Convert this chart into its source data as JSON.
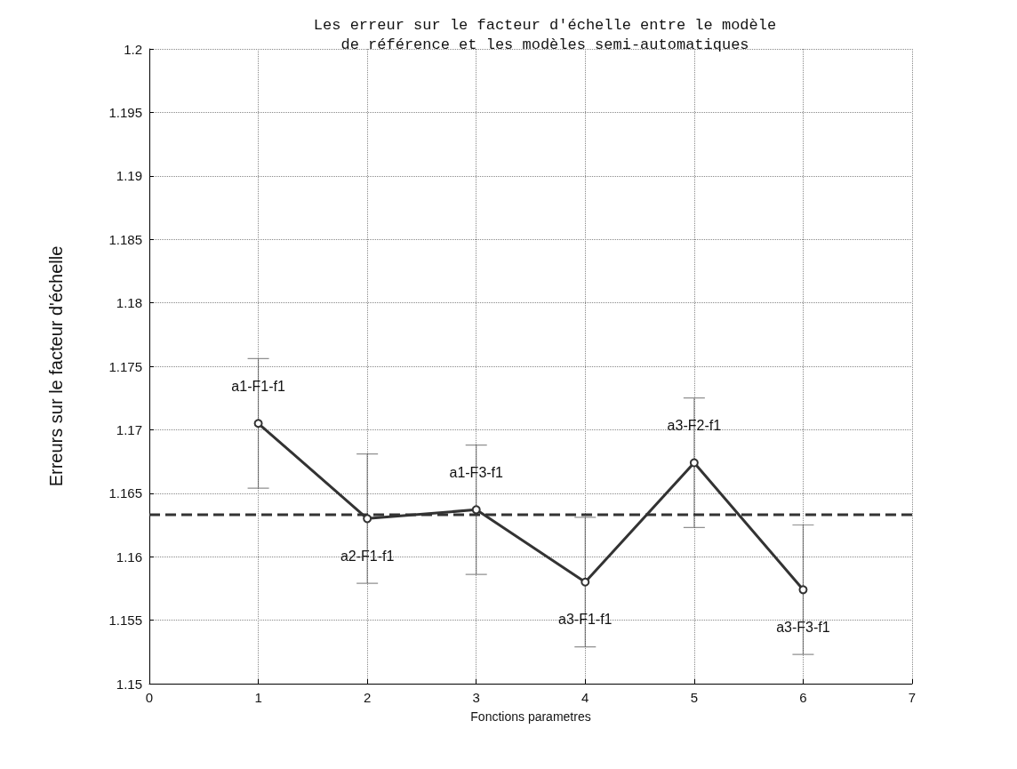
{
  "chart_data": {
    "type": "line",
    "title": "Les erreur sur le facteur d'échelle entre le modèle\nde référence et les modèles semi-automatiques",
    "xlabel": "Fonctions parametres",
    "ylabel": "Erreurs sur le facteur d'échelle",
    "x": [
      1,
      2,
      3,
      4,
      5,
      6
    ],
    "series": [
      {
        "color": "#333333",
        "values": [
          1.1705,
          1.163,
          1.1637,
          1.158,
          1.1674,
          1.1574
        ],
        "errors": [
          0.0051,
          0.0051,
          0.0051,
          0.0051,
          0.0051,
          0.0051
        ]
      }
    ],
    "ref_lines": [
      {
        "axis": "y",
        "value": 1.1633,
        "color": "#333333",
        "line_style": "dashed"
      }
    ],
    "annotations": [
      "a1-F1-f1",
      "a2-F1-f1",
      "a1-F3-f1",
      "a3-F1-f1",
      "a3-F2-f1",
      "a3-F3-f1"
    ],
    "xlim": [
      0,
      7
    ],
    "xticks": [
      0,
      1,
      2,
      3,
      4,
      5,
      6,
      7
    ],
    "ylim": [
      1.15,
      1.2
    ],
    "yticks": [
      1.15,
      1.155,
      1.16,
      1.165,
      1.17,
      1.175,
      1.18,
      1.185,
      1.19,
      1.195,
      1.2
    ],
    "grid": true,
    "marker": "circle",
    "line_style": "solid"
  }
}
